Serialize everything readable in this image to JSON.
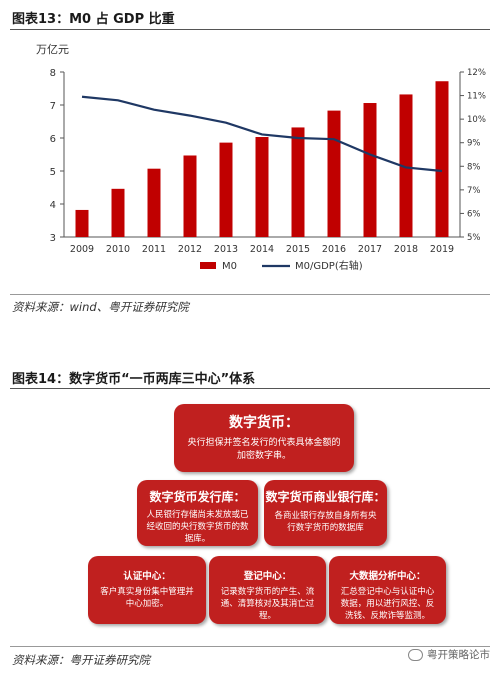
{
  "figure13": {
    "title": "图表13：M0 占 GDP 比重",
    "source": "资料来源：wind、粤开证券研究院"
  },
  "chart_data": {
    "type": "bar",
    "left_unit": "万亿元",
    "categories": [
      "2009",
      "2010",
      "2011",
      "2012",
      "2013",
      "2014",
      "2015",
      "2016",
      "2017",
      "2018",
      "2019"
    ],
    "series": [
      {
        "name": "M0",
        "type": "bar",
        "axis": "left",
        "color": "#c00000",
        "values": [
          3.82,
          4.46,
          5.07,
          5.47,
          5.86,
          6.03,
          6.32,
          6.83,
          7.06,
          7.32,
          7.72
        ]
      },
      {
        "name": "M0/GDP(右轴)",
        "type": "line",
        "axis": "right",
        "color": "#1f3864",
        "values": [
          10.95,
          10.8,
          10.4,
          10.15,
          9.85,
          9.35,
          9.2,
          9.15,
          8.5,
          7.95,
          7.8
        ]
      }
    ],
    "ylim": [
      3,
      8
    ],
    "yticks": [
      3,
      4,
      5,
      6,
      7,
      8
    ],
    "y2lim": [
      5,
      12
    ],
    "y2ticks": [
      "5%",
      "6%",
      "7%",
      "8%",
      "9%",
      "10%",
      "11%",
      "12%"
    ],
    "legend": "bottom-center",
    "grid": false
  },
  "figure14": {
    "title": "图表14：数字货币“一币两库三中心”体系",
    "source": "资料来源：粤开证券研究院",
    "boxes": {
      "top": {
        "title": "数字货币：",
        "desc": "央行担保并签名发行的代表具体金额的加密数字串。"
      },
      "mid_left": {
        "title": "数字货币发行库：",
        "desc": "人民银行存储尚未发放或已经收回的央行数字货币的数据库。"
      },
      "mid_right": {
        "title": "数字货币商业银行库：",
        "desc": "各商业银行存放自身所有央行数字货币的数据库"
      },
      "bot_left": {
        "title": "认证中心：",
        "desc": "客户真实身份集中管理并中心加密。"
      },
      "bot_mid": {
        "title": "登记中心：",
        "desc": "记录数字货币的产生、流通、清算核对及其消亡过程。"
      },
      "bot_right": {
        "title": "大数据分析中心：",
        "desc": "汇总登记中心与认证中心数据，用以进行风控、反洗钱、反欺诈等监测。"
      }
    }
  },
  "watermark": "粤开策略论市"
}
